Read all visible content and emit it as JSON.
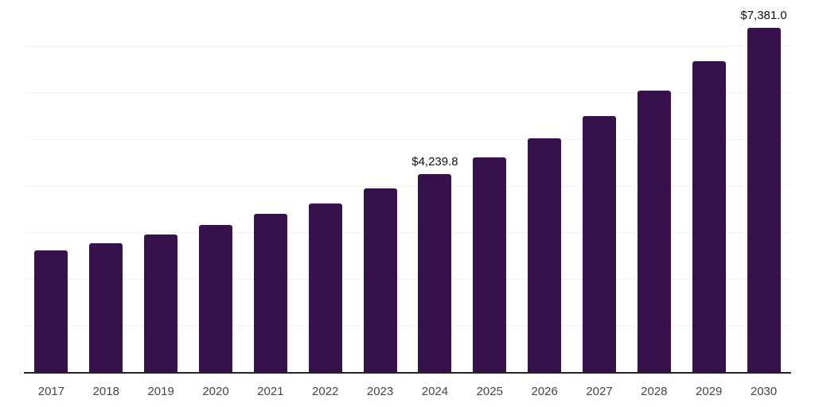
{
  "chart_data": {
    "type": "bar",
    "title": "",
    "xlabel": "",
    "ylabel": "",
    "categories": [
      "2017",
      "2018",
      "2019",
      "2020",
      "2021",
      "2022",
      "2023",
      "2024",
      "2025",
      "2026",
      "2027",
      "2028",
      "2029",
      "2030"
    ],
    "values": [
      2605,
      2765,
      2950,
      3155,
      3390,
      3620,
      3940,
      4239.8,
      4605,
      5010,
      5490,
      6040,
      6670,
      7381.0
    ],
    "data_labels": {
      "2024": "$4,239.8",
      "2030": "$7,381.0"
    },
    "ylim": [
      0,
      8000
    ],
    "gridline_step": 1000,
    "grid": "horizontal",
    "legend": "none",
    "y_axis_labels_visible": false,
    "colors": {
      "bar": "#36114b",
      "axis_line": "#262626",
      "gridline": "#f2f2f2",
      "tick_label": "#444444",
      "data_label": "#111111",
      "background": "#ffffff"
    }
  }
}
